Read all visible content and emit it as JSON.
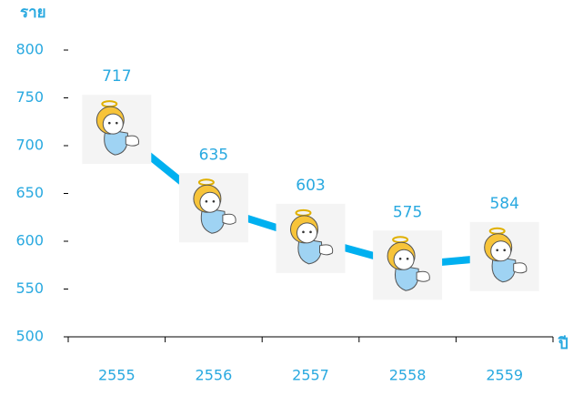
{
  "chart_data": {
    "type": "line",
    "y_axis_label": "ราย",
    "x_axis_label": "ปี",
    "categories": [
      "2555",
      "2556",
      "2557",
      "2558",
      "2559"
    ],
    "values": [
      717,
      635,
      603,
      575,
      584
    ],
    "color": "#00b0f0",
    "ylim": [
      500,
      800
    ],
    "yticks": [
      500,
      550,
      600,
      650,
      700,
      750,
      800
    ]
  }
}
